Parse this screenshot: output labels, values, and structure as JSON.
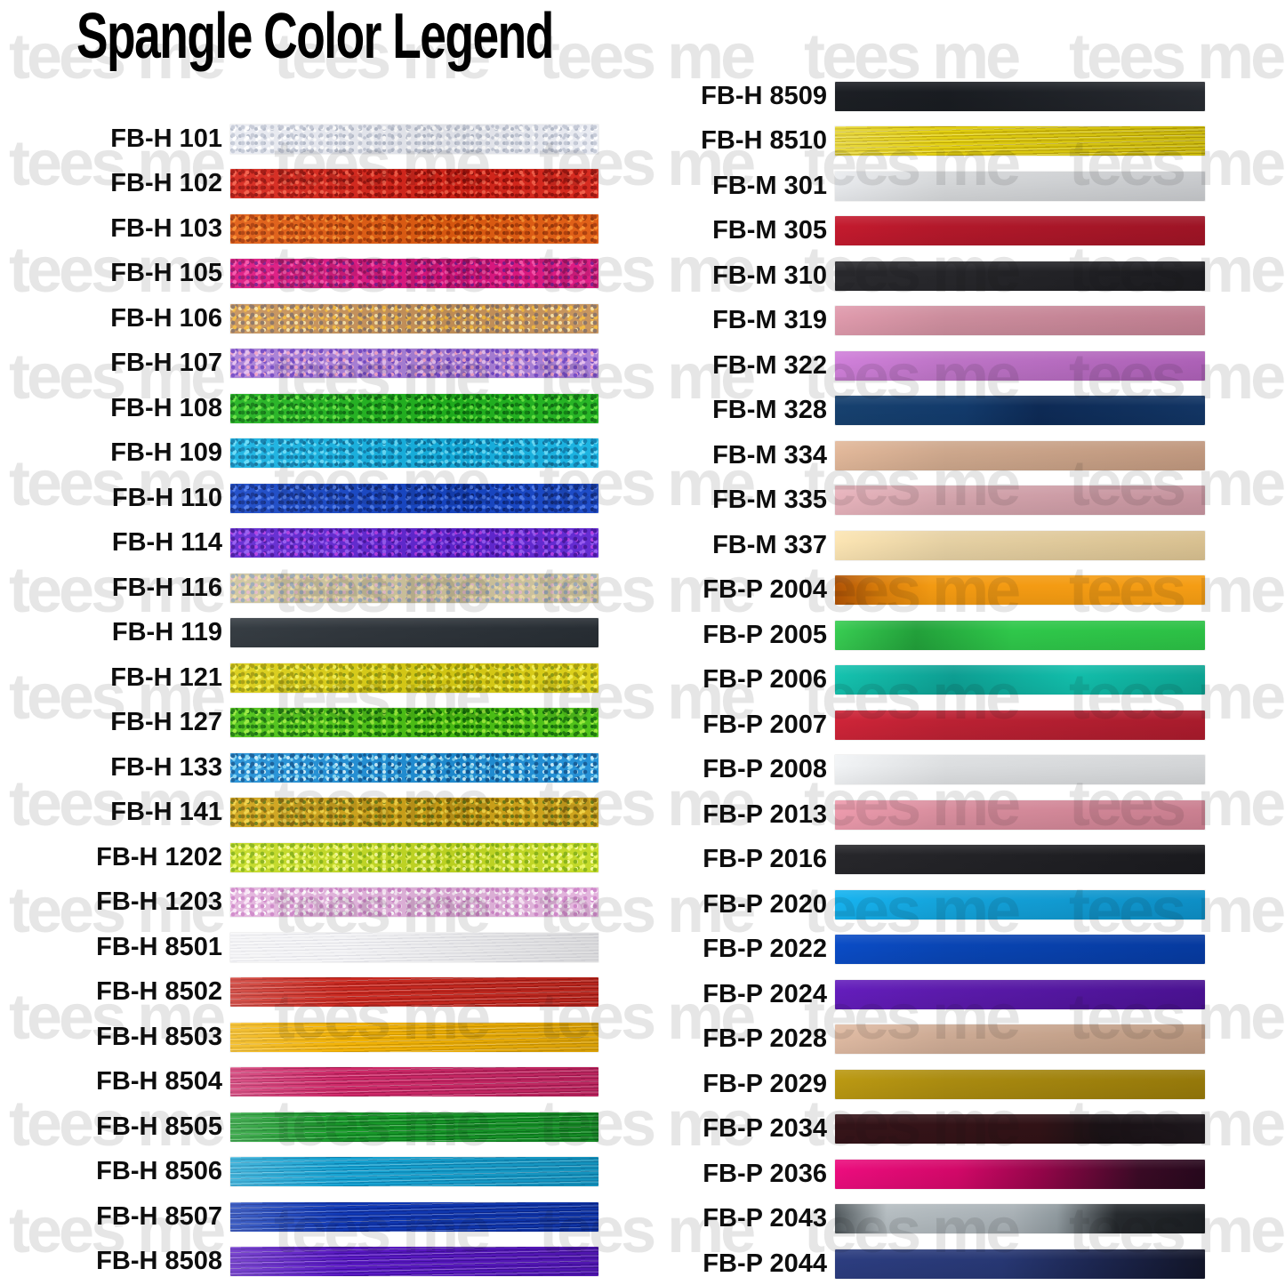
{
  "title": "Spangle Color Legend",
  "watermark": {
    "text": "tees me"
  },
  "columns": [
    {
      "name": "left",
      "items": [
        {
          "code": "FB-H 101",
          "texture": "glitter",
          "colors": [
            "#e9ebf2",
            "#c5cad7",
            "#ffffff",
            "#b3bac9"
          ]
        },
        {
          "code": "FB-H 102",
          "texture": "glitter",
          "colors": [
            "#d62419",
            "#a30f08",
            "#f25a45",
            "#8f0d09"
          ]
        },
        {
          "code": "FB-H 103",
          "texture": "glitter",
          "colors": [
            "#e05b10",
            "#ae3b06",
            "#f78c2c",
            "#913305"
          ]
        },
        {
          "code": "FB-H 105",
          "texture": "glitter",
          "colors": [
            "#de1580",
            "#a00d62",
            "#f650a8",
            "#7d1a8c"
          ]
        },
        {
          "code": "FB-H 106",
          "texture": "glitter",
          "colors": [
            "#c79259",
            "#8a7263",
            "#f2b83c",
            "#f7e1a6"
          ]
        },
        {
          "code": "FB-H 107",
          "texture": "glitter",
          "colors": [
            "#a87ed7",
            "#7347c5",
            "#e4bded",
            "#f0a1c6"
          ]
        },
        {
          "code": "FB-H 108",
          "texture": "glitter",
          "colors": [
            "#20b31e",
            "#0d7d0f",
            "#64e13e",
            "#0a690d"
          ]
        },
        {
          "code": "FB-H 109",
          "texture": "glitter",
          "colors": [
            "#15b2e2",
            "#0b7fb0",
            "#64daf8",
            "#0a6e97"
          ]
        },
        {
          "code": "FB-H 110",
          "texture": "glitter",
          "colors": [
            "#1646c6",
            "#0c2d92",
            "#4a77e9",
            "#0a2476"
          ]
        },
        {
          "code": "FB-H 114",
          "texture": "glitter",
          "colors": [
            "#6026d2",
            "#43119d",
            "#9357f0",
            "#b13ae2"
          ]
        },
        {
          "code": "FB-H 116",
          "texture": "glitter",
          "colors": [
            "#cfc49d",
            "#9aa9b6",
            "#eddca8",
            "#e5bac7"
          ]
        },
        {
          "code": "FB-H 119",
          "texture": "foil",
          "colors": [
            "#31373d",
            "#272d33"
          ]
        },
        {
          "code": "FB-H 121",
          "texture": "glitter",
          "colors": [
            "#dbce13",
            "#a89d06",
            "#f4ef50",
            "#8a9a10"
          ]
        },
        {
          "code": "FB-H 127",
          "texture": "glitter",
          "colors": [
            "#4bc213",
            "#1c7906",
            "#97e939",
            "#0e6a08"
          ]
        },
        {
          "code": "FB-H 133",
          "texture": "glitter",
          "colors": [
            "#1f8fd7",
            "#0f5a97",
            "#7dd3f3",
            "#c9edfb"
          ]
        },
        {
          "code": "FB-H 141",
          "texture": "glitter",
          "colors": [
            "#cfa317",
            "#8a6a06",
            "#f1d243",
            "#6a7a14"
          ]
        },
        {
          "code": "FB-H 1202",
          "texture": "glitter",
          "colors": [
            "#c3da22",
            "#88b414",
            "#ebf85f",
            "#f7fc9c"
          ]
        },
        {
          "code": "FB-H 1203",
          "texture": "glitter",
          "colors": [
            "#e3b4dd",
            "#cf86c9",
            "#fae5f7",
            "#ffffff"
          ]
        },
        {
          "code": "FB-H 8501",
          "texture": "stripes",
          "colors": [
            "#f4f4f6",
            "#e1e1e6"
          ]
        },
        {
          "code": "FB-H 8502",
          "texture": "stripes",
          "colors": [
            "#cb2b22",
            "#a61a14"
          ]
        },
        {
          "code": "FB-H 8503",
          "texture": "stripes",
          "colors": [
            "#f3b306",
            "#d19903"
          ]
        },
        {
          "code": "FB-H 8504",
          "texture": "stripes",
          "colors": [
            "#cf2a69",
            "#a81951"
          ]
        },
        {
          "code": "FB-H 8505",
          "texture": "stripes",
          "colors": [
            "#189b2a",
            "#0b7a1d"
          ]
        },
        {
          "code": "FB-H 8506",
          "texture": "stripes",
          "colors": [
            "#17a3d2",
            "#0b83b2"
          ]
        },
        {
          "code": "FB-H 8507",
          "texture": "stripes",
          "colors": [
            "#1039b6",
            "#0a2793"
          ]
        },
        {
          "code": "FB-H 8508",
          "texture": "stripes",
          "colors": [
            "#5a18c4",
            "#400f9e"
          ]
        }
      ]
    },
    {
      "name": "right",
      "items": [
        {
          "code": "FB-H 8509",
          "texture": "foil",
          "colors": [
            "#191c21",
            "#272a30"
          ]
        },
        {
          "code": "FB-H 8510",
          "texture": "stripes",
          "colors": [
            "#e2cf10",
            "#bda607"
          ]
        },
        {
          "code": "FB-M 301",
          "texture": "foil",
          "colors": [
            "#d4d6d8",
            "#c6c8cb"
          ]
        },
        {
          "code": "FB-M 305",
          "texture": "foil",
          "colors": [
            "#b2182a",
            "#9d1425"
          ]
        },
        {
          "code": "FB-M 310",
          "texture": "foil",
          "colors": [
            "#27272b",
            "#1c1c20"
          ]
        },
        {
          "code": "FB-M 319",
          "texture": "foil",
          "colors": [
            "#cc8d9d",
            "#bf7e90"
          ]
        },
        {
          "code": "FB-M 322",
          "texture": "foil",
          "colors": [
            "#bd74c6",
            "#ac60b6"
          ]
        },
        {
          "code": "FB-M 328",
          "texture": "foil",
          "colors": [
            "#13386e"
          ],
          "stops": [
            "#17416f 0%",
            "#123a6b 35%",
            "#0d2a55 55%",
            "#123564 100%"
          ]
        },
        {
          "code": "FB-M 334",
          "texture": "foil",
          "colors": [
            "#cda78c",
            "#bf977e"
          ]
        },
        {
          "code": "FB-M 335",
          "texture": "foil",
          "colors": [
            "#d3a4ac",
            "#c5939e"
          ]
        },
        {
          "code": "FB-M 337",
          "texture": "foil",
          "colors": [
            "#e5d0a3",
            "#d8c090"
          ]
        },
        {
          "code": "FB-P 2004",
          "texture": "foil",
          "colors": [
            "#f39a12"
          ],
          "stops": [
            "#b05204 0%",
            "#d97d0a 12%",
            "#f39a12 26%",
            "#f59d14 100%"
          ]
        },
        {
          "code": "FB-P 2005",
          "texture": "foil",
          "colors": [
            "#2dc248"
          ],
          "stops": [
            "#38cd52 0%",
            "#22a03a 22%",
            "#2fc74a 48%",
            "#2cc045 100%"
          ]
        },
        {
          "code": "FB-P 2006",
          "texture": "foil",
          "colors": [
            "#12bcaa"
          ],
          "stops": [
            "#15c3af 0%",
            "#0d9e92 32%",
            "#12bdaa 65%",
            "#0da392 100%"
          ]
        },
        {
          "code": "FB-P 2007",
          "texture": "foil",
          "colors": [
            "#bb2133",
            "#a81b2c"
          ]
        },
        {
          "code": "FB-P 2008",
          "texture": "foil",
          "colors": [
            "#dcdee0",
            "#d2d4d6"
          ]
        },
        {
          "code": "FB-P 2013",
          "texture": "foil",
          "colors": [
            "#d78d9d",
            "#ca7f90"
          ]
        },
        {
          "code": "FB-P 2016",
          "texture": "foil",
          "colors": [
            "#232327",
            "#1a1a1e"
          ]
        },
        {
          "code": "FB-P 2020",
          "texture": "foil",
          "colors": [
            "#14a3da",
            "#0d8ec5"
          ]
        },
        {
          "code": "FB-P 2022",
          "texture": "foil",
          "colors": [
            "#0945b4",
            "#063a9f"
          ]
        },
        {
          "code": "FB-P 2024",
          "texture": "foil",
          "colors": [
            "#5b1aab",
            "#491190"
          ]
        },
        {
          "code": "FB-P 2028",
          "texture": "foil",
          "colors": [
            "#ccaa94",
            "#bd9a82"
          ]
        },
        {
          "code": "FB-P 2029",
          "texture": "foil",
          "colors": [
            "#aa8b10",
            "#95780a"
          ]
        },
        {
          "code": "FB-P 2034",
          "texture": "foil",
          "colors": [
            "#2c1217"
          ],
          "stops": [
            "#361419 0%",
            "#311216 55%",
            "#1a1216 72%",
            "#1d171c 100%"
          ]
        },
        {
          "code": "FB-P 2036",
          "texture": "foil",
          "colors": [
            "#d2086a"
          ],
          "stops": [
            "#ec0d7e 0%",
            "#d20868 33%",
            "#96054a 55%",
            "#3a0a25 82%",
            "#26081c 100%"
          ]
        },
        {
          "code": "FB-P 2043",
          "texture": "foil",
          "colors": [
            "#9aa4a8"
          ],
          "stops": [
            "#4e565a 0%",
            "#b4bcc0 14%",
            "#a8b0b5 48%",
            "#8f999e 60%",
            "#262a2e 76%",
            "#1b1e22 100%"
          ]
        },
        {
          "code": "FB-P 2044",
          "texture": "foil",
          "colors": [
            "#243570"
          ],
          "stops": [
            "#2c3d80 0%",
            "#273773 45%",
            "#1c2650 70%",
            "#121528 100%"
          ]
        }
      ]
    }
  ]
}
